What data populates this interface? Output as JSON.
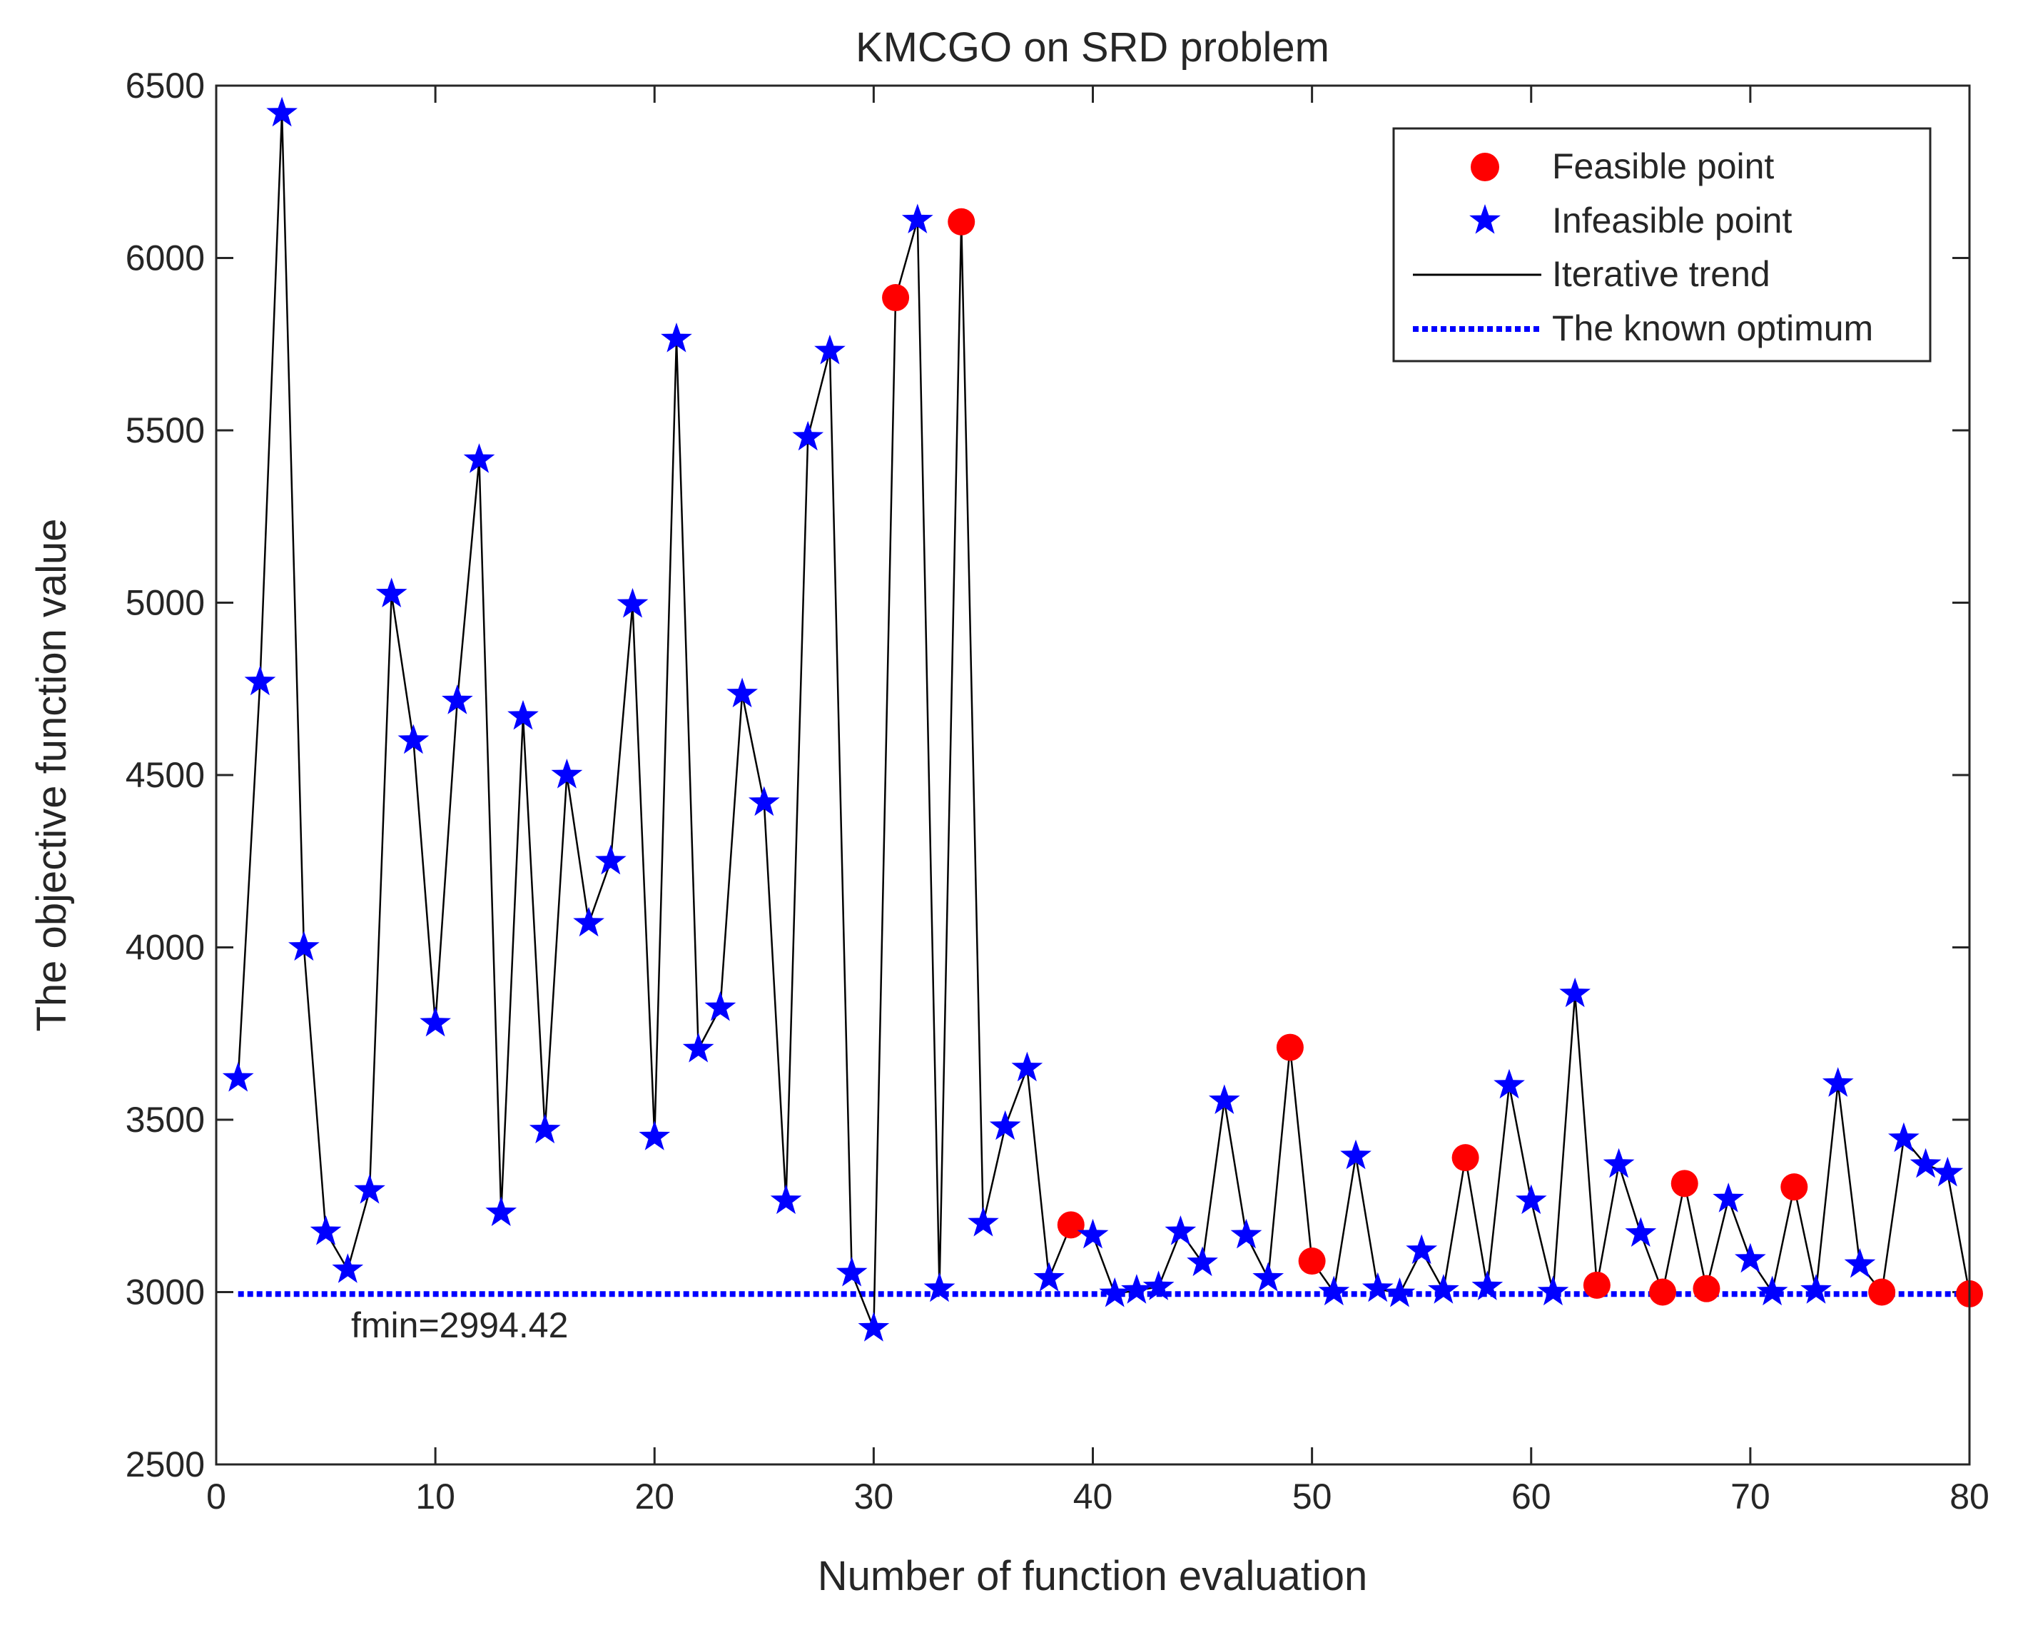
{
  "chart_data": {
    "type": "scatter",
    "title": "KMCGO on SRD problem",
    "xlabel": "Number of function evaluation",
    "ylabel": "The objective function value",
    "xlim": [
      0,
      80
    ],
    "ylim": [
      2500,
      6500
    ],
    "xticks": [
      0,
      10,
      20,
      30,
      40,
      50,
      60,
      70,
      80
    ],
    "yticks": [
      2500,
      3000,
      3500,
      4000,
      4500,
      5000,
      5500,
      6000,
      6500
    ],
    "grid": false,
    "legend_position": "top-right",
    "legend": {
      "feasible": "Feasible point",
      "infeasible": "Infeasible point",
      "trend": "Iterative trend",
      "optimum": "The known optimum"
    },
    "colors": {
      "feasible": "#ff0000",
      "infeasible": "#0000ff",
      "trend": "#000000",
      "optimum": "#0000ff",
      "axis": "#262626"
    },
    "optimum_value": 2994.42,
    "annotation": "fmin=2994.42",
    "x": [
      1,
      2,
      3,
      4,
      5,
      6,
      7,
      8,
      9,
      10,
      11,
      12,
      13,
      14,
      15,
      16,
      17,
      18,
      19,
      20,
      21,
      22,
      23,
      24,
      25,
      26,
      27,
      28,
      29,
      30,
      31,
      32,
      33,
      34,
      35,
      36,
      37,
      38,
      39,
      40,
      41,
      42,
      43,
      44,
      45,
      46,
      47,
      48,
      49,
      50,
      51,
      52,
      53,
      54,
      55,
      56,
      57,
      58,
      59,
      60,
      61,
      62,
      63,
      64,
      65,
      66,
      67,
      68,
      69,
      70,
      71,
      72,
      73,
      74,
      75,
      76,
      77,
      78,
      79,
      80
    ],
    "y": [
      3620,
      4770,
      6420,
      4000,
      3175,
      3065,
      3295,
      5025,
      4600,
      3780,
      4715,
      5415,
      3230,
      4670,
      3470,
      4500,
      4070,
      4250,
      4995,
      3450,
      5765,
      3705,
      3825,
      4735,
      4420,
      3265,
      5480,
      5730,
      3055,
      2895,
      5885,
      6110,
      3010,
      6105,
      3200,
      3480,
      3650,
      3040,
      3195,
      3165,
      2995,
      3005,
      3015,
      3175,
      3085,
      3555,
      3165,
      3040,
      3710,
      3090,
      3000,
      3395,
      3010,
      2995,
      3120,
      3005,
      3390,
      3015,
      3600,
      3265,
      3000,
      3865,
      3020,
      3370,
      3170,
      3000,
      3315,
      3010,
      3270,
      3095,
      3000,
      3305,
      3005,
      3605,
      3080,
      3000,
      3445,
      3370,
      3345,
      2995
    ],
    "feasible": [
      0,
      0,
      0,
      0,
      0,
      0,
      0,
      0,
      0,
      0,
      0,
      0,
      0,
      0,
      0,
      0,
      0,
      0,
      0,
      0,
      0,
      0,
      0,
      0,
      0,
      0,
      0,
      0,
      0,
      0,
      1,
      0,
      0,
      1,
      0,
      0,
      0,
      0,
      1,
      0,
      0,
      0,
      0,
      0,
      0,
      0,
      0,
      0,
      1,
      1,
      0,
      0,
      0,
      0,
      0,
      0,
      1,
      0,
      0,
      0,
      0,
      0,
      1,
      0,
      0,
      1,
      1,
      1,
      0,
      0,
      0,
      1,
      0,
      0,
      0,
      1,
      0,
      0,
      0,
      1
    ]
  }
}
